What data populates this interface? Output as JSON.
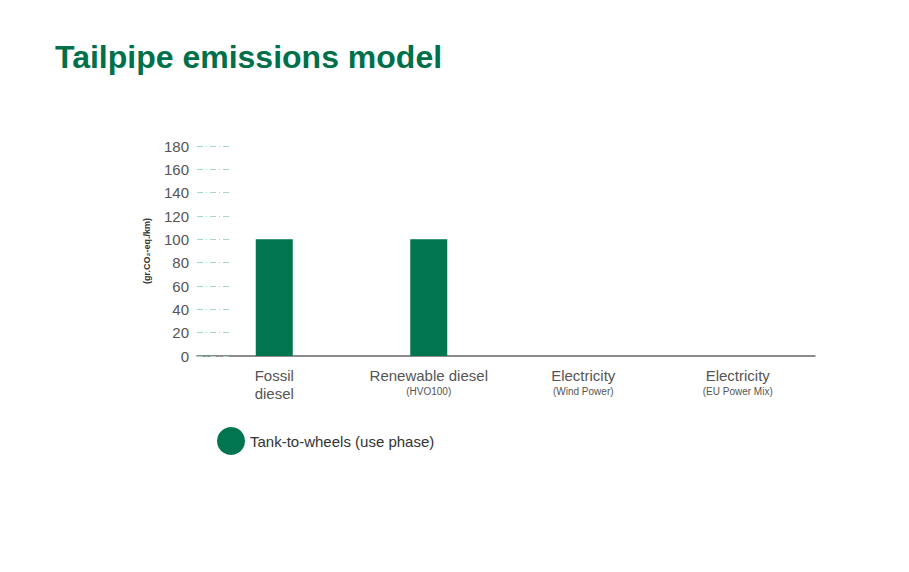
{
  "chart_data": {
    "type": "bar",
    "title": "Tailpipe emissions model",
    "y_label": "(gr.CO₂-eq./km)",
    "categories": [
      "Fossil\ndiesel",
      "Renewable diesel",
      "Electricity",
      "Electricity"
    ],
    "category_notes": [
      null,
      "(HVO100)",
      "(Wind Power)",
      "(EU Power Mix)"
    ],
    "series": [
      {
        "name": "Tank-to-wheels (use phase)",
        "color": "#00754f",
        "values": [
          100,
          100,
          0,
          0
        ]
      }
    ],
    "ylim": [
      0,
      180
    ],
    "yticks": [
      0,
      20,
      40,
      60,
      80,
      100,
      120,
      140,
      160,
      180
    ],
    "grid": true,
    "legend": "bottom-left"
  }
}
